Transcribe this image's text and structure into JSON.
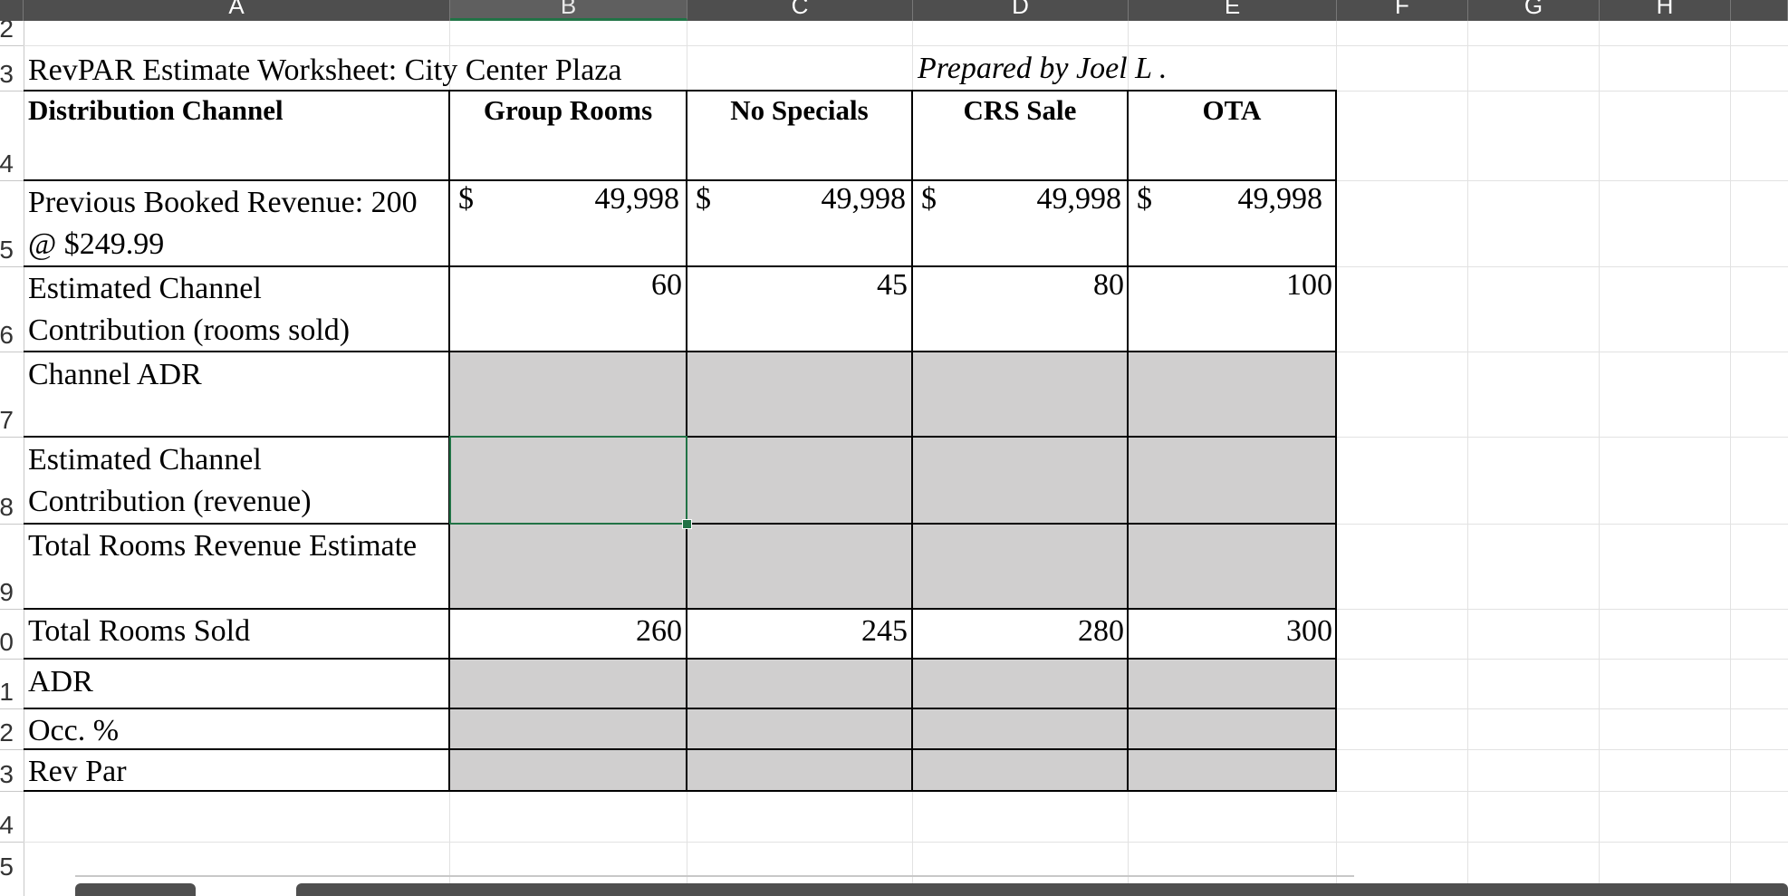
{
  "columns": [
    "A",
    "B",
    "C",
    "D",
    "E",
    "F",
    "G",
    "H"
  ],
  "rows": [
    "2",
    "3",
    "4",
    "5",
    "6",
    "7",
    "8",
    "9",
    "0",
    "1",
    "2",
    "3",
    "4",
    "5"
  ],
  "sheet": {
    "title": "RevPAR Estimate Worksheet: City Center Plaza",
    "prepared_by": "Prepared by Joel L .",
    "header_row": {
      "label": "Distribution Channel",
      "channels": [
        "Group Rooms",
        "No Specials",
        "CRS Sale",
        "OTA"
      ]
    },
    "previous_revenue": {
      "label_line1": "Previous Booked Revenue: 200",
      "label_line2": "@ $249.99",
      "currency": "$",
      "values": [
        "49,998",
        "49,998",
        "49,998",
        "49,998"
      ]
    },
    "channel_contribution_rooms": {
      "label_line1": "Estimated Channel",
      "label_line2": "Contribution (rooms sold)",
      "values": [
        "60",
        "45",
        "80",
        "100"
      ]
    },
    "channel_adr": {
      "label": "Channel ADR"
    },
    "channel_contribution_revenue": {
      "label_line1": "Estimated Channel",
      "label_line2": "Contribution (revenue)"
    },
    "total_rooms_revenue": {
      "label": "Total Rooms Revenue Estimate"
    },
    "total_rooms_sold": {
      "label": "Total Rooms Sold",
      "values": [
        "260",
        "245",
        "280",
        "300"
      ]
    },
    "adr": {
      "label": "ADR"
    },
    "occupancy": {
      "label": "Occ. %"
    },
    "revpar": {
      "label": "Rev Par"
    }
  },
  "colors": {
    "shade": "#d0cfcf",
    "selection": "#217346",
    "header_bar": "#4e4e4e"
  }
}
